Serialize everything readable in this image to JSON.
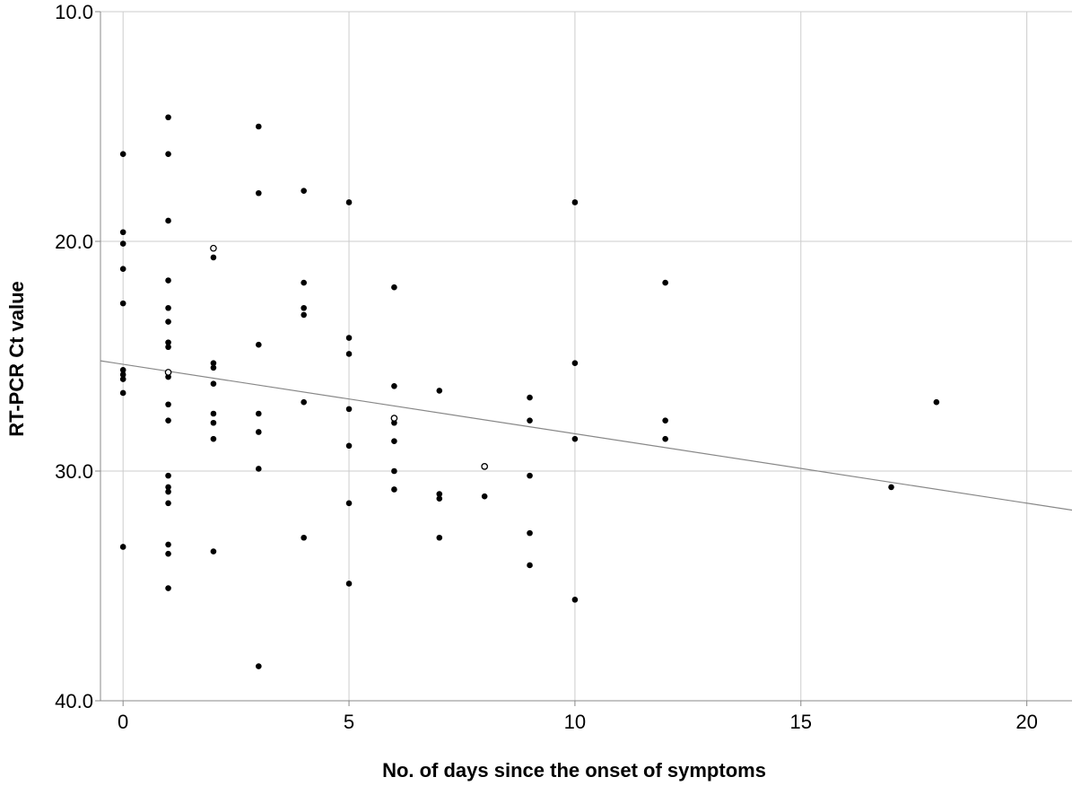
{
  "chart_data": {
    "type": "scatter",
    "title": "",
    "xlabel": "No. of days since the onset of symptoms",
    "ylabel": "RT-PCR Ct value",
    "xlim": [
      -0.5,
      21
    ],
    "ylim": [
      10,
      40
    ],
    "y_inverted": true,
    "grid": true,
    "x_ticks": [
      0,
      5,
      10,
      15,
      20
    ],
    "x_tick_labels": [
      "0",
      "5",
      "10",
      "15",
      "20"
    ],
    "y_ticks": [
      10,
      20,
      30,
      40
    ],
    "y_tick_labels": [
      "10.0",
      "20.0",
      "30.0",
      "40.0"
    ],
    "series": [
      {
        "marker": "filled-circle",
        "points": [
          [
            0,
            16.2
          ],
          [
            0,
            19.6
          ],
          [
            0,
            20.1
          ],
          [
            0,
            21.2
          ],
          [
            0,
            22.7
          ],
          [
            0,
            25.6
          ],
          [
            0,
            25.8
          ],
          [
            0,
            26.0
          ],
          [
            0,
            26.6
          ],
          [
            0,
            33.3
          ],
          [
            1,
            14.6
          ],
          [
            1,
            16.2
          ],
          [
            1,
            19.1
          ],
          [
            1,
            21.7
          ],
          [
            1,
            22.9
          ],
          [
            1,
            23.5
          ],
          [
            1,
            24.4
          ],
          [
            1,
            24.6
          ],
          [
            1,
            25.9
          ],
          [
            1,
            27.1
          ],
          [
            1,
            27.8
          ],
          [
            1,
            30.2
          ],
          [
            1,
            30.7
          ],
          [
            1,
            30.9
          ],
          [
            1,
            31.4
          ],
          [
            1,
            33.2
          ],
          [
            1,
            33.6
          ],
          [
            1,
            35.1
          ],
          [
            2,
            20.7
          ],
          [
            2,
            25.3
          ],
          [
            2,
            25.5
          ],
          [
            2,
            26.2
          ],
          [
            2,
            27.5
          ],
          [
            2,
            27.9
          ],
          [
            2,
            28.6
          ],
          [
            2,
            33.5
          ],
          [
            3,
            15.0
          ],
          [
            3,
            17.9
          ],
          [
            3,
            24.5
          ],
          [
            3,
            27.5
          ],
          [
            3,
            28.3
          ],
          [
            3,
            29.9
          ],
          [
            3,
            38.5
          ],
          [
            4,
            17.8
          ],
          [
            4,
            21.8
          ],
          [
            4,
            22.9
          ],
          [
            4,
            23.2
          ],
          [
            4,
            27.0
          ],
          [
            4,
            32.9
          ],
          [
            5,
            18.3
          ],
          [
            5,
            24.2
          ],
          [
            5,
            24.9
          ],
          [
            5,
            27.3
          ],
          [
            5,
            28.9
          ],
          [
            5,
            31.4
          ],
          [
            5,
            34.9
          ],
          [
            6,
            22.0
          ],
          [
            6,
            26.3
          ],
          [
            6,
            27.9
          ],
          [
            6,
            28.7
          ],
          [
            6,
            30.0
          ],
          [
            6,
            30.8
          ],
          [
            7,
            26.5
          ],
          [
            7,
            31.0
          ],
          [
            7,
            31.2
          ],
          [
            7,
            32.9
          ],
          [
            8,
            31.1
          ],
          [
            9,
            26.8
          ],
          [
            9,
            27.8
          ],
          [
            9,
            30.2
          ],
          [
            9,
            32.7
          ],
          [
            9,
            34.1
          ],
          [
            10,
            18.3
          ],
          [
            10,
            25.3
          ],
          [
            10,
            28.6
          ],
          [
            10,
            35.6
          ],
          [
            12,
            21.8
          ],
          [
            12,
            27.8
          ],
          [
            12,
            28.6
          ],
          [
            17,
            30.7
          ],
          [
            18,
            27.0
          ]
        ]
      },
      {
        "marker": "open-circle",
        "points": [
          [
            2,
            20.3
          ],
          [
            1,
            25.7
          ],
          [
            6,
            27.7
          ],
          [
            8,
            29.8
          ]
        ]
      }
    ],
    "fit_line": {
      "x": [
        -0.5,
        21
      ],
      "y": [
        25.2,
        31.7
      ]
    }
  }
}
